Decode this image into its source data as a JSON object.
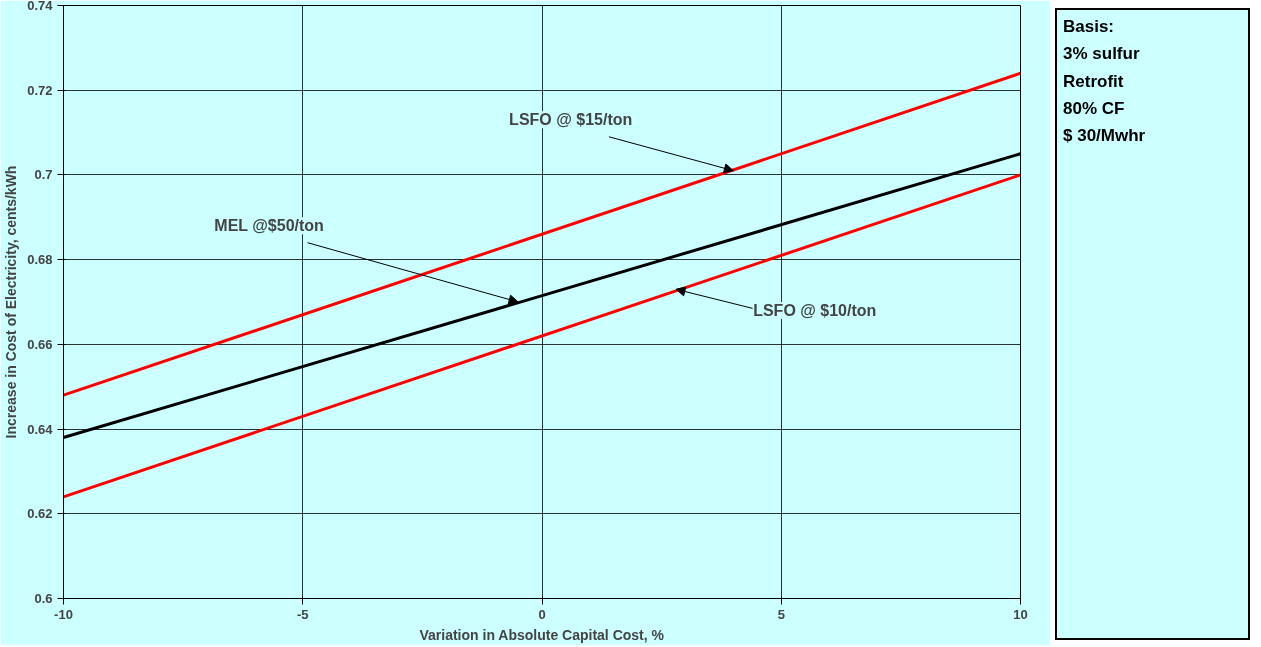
{
  "chart_data": {
    "type": "line",
    "xlabel": "Variation in Absolute Capital Cost, %",
    "ylabel": "Increase in Cost of Electricity, cents/kWh",
    "x": [
      -10,
      10
    ],
    "series": [
      {
        "color": "#ff0000",
        "values": [
          0.648,
          0.724
        ]
      },
      {
        "color": "#000000",
        "values": [
          0.638,
          0.705
        ]
      },
      {
        "color": "#ff0000",
        "values": [
          0.624,
          0.7
        ]
      }
    ],
    "xlim": [
      -10,
      10
    ],
    "xticks": [
      -10,
      -5,
      0,
      5,
      10
    ],
    "ylim": [
      0.6,
      0.74
    ],
    "yticks": [
      0.6,
      0.62,
      0.64,
      0.66,
      0.68,
      0.7,
      0.72,
      0.74
    ],
    "grid": true,
    "marker": "none",
    "line_style": "solid",
    "annotations": [
      {
        "text": "LSFO @ $15/ton",
        "x": 4,
        "y": 0.701
      },
      {
        "text": "MEL @$50/ton",
        "x": -0.5,
        "y": 0.67
      },
      {
        "text": "LSFO @ $10/ton",
        "x": 2.8,
        "y": 0.673
      },
      "Basis:\n3% sulfur\nRetrofit\n80% CF\n$ 30/Mwhr"
    ]
  }
}
